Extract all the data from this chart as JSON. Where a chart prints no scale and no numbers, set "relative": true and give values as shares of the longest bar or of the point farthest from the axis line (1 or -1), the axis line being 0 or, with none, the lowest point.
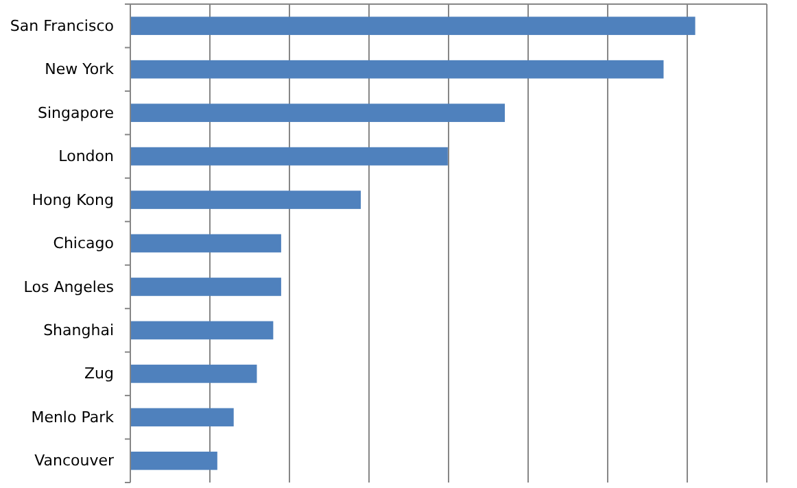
{
  "chart_data": {
    "type": "bar",
    "orientation": "horizontal",
    "relative": true,
    "grid": "x",
    "color": "#4f81bd",
    "categories": [
      "San Francisco",
      "New York",
      "Singapore",
      "London",
      "Hong Kong",
      "Chicago",
      "Los Angeles",
      "Shanghai",
      "Zug",
      "Menlo Park",
      "Vancouver"
    ],
    "values": [
      1,
      0.944,
      0.663,
      0.562,
      0.408,
      0.267,
      0.267,
      0.253,
      0.224,
      0.183,
      0.154
    ]
  }
}
